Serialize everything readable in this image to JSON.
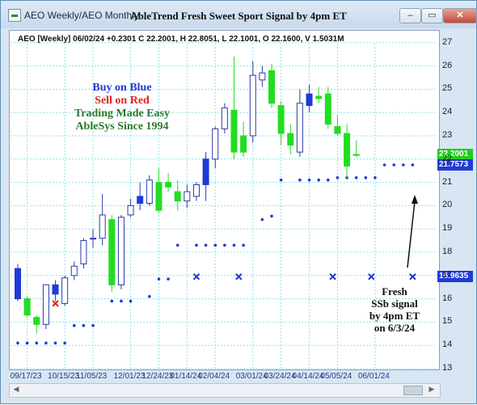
{
  "window": {
    "title": "AEO Weekly/AEO Monthly",
    "chart_title": "AbleTrend Fresh Sweet Sport Signal by 4pm ET",
    "minimize_label": "–",
    "restore_label": "▭",
    "close_label": "✕"
  },
  "info_line": "AEO [Weekly] 06/02/24 +0.2301 C 22.2001, H 22.8051, L 22.1001, O 22.1600, V 1.5031M",
  "annotations": {
    "buy": "Buy on Blue",
    "sell": "Sell on Red",
    "easy": "Trading Made Easy",
    "ablesys": "AbleSys Since 1994",
    "fresh": [
      "Fresh",
      "SSb signal",
      "by 4pm ET",
      "on 6/3/24"
    ]
  },
  "price_tags": [
    {
      "value": "22.2001",
      "bg": "#22cc22",
      "fg": "#ffffff"
    },
    {
      "value": "21.7573",
      "bg": "#1f3ad6",
      "fg": "#ffffff"
    },
    {
      "value": "16.9635",
      "bg": "#1f3ad6",
      "fg": "#ffffff"
    }
  ],
  "colors": {
    "buy": "#1f3ad6",
    "sell": "#dd2222",
    "green": "#22dd22",
    "dark_green": "#2a7a2a",
    "grid": "#8fe3e8",
    "dot": "#1f3ad6"
  },
  "chart_data": {
    "type": "candlestick",
    "ylim": [
      13,
      27.5
    ],
    "y_ticks": [
      13,
      14,
      15,
      16,
      17,
      18,
      19,
      20,
      21,
      22,
      23,
      24,
      25,
      26,
      27
    ],
    "x_tick_labels": [
      {
        "label": "09/17/23",
        "index": 1
      },
      {
        "label": "10/15/23",
        "index": 5
      },
      {
        "label": "11/05/23",
        "index": 8
      },
      {
        "label": "12/01/23",
        "index": 12
      },
      {
        "label": "12/24/23",
        "index": 15
      },
      {
        "label": "01/14/24",
        "index": 18
      },
      {
        "label": "02/04/24",
        "index": 21
      },
      {
        "label": "03/01/24",
        "index": 25
      },
      {
        "label": "03/24/24",
        "index": 28
      },
      {
        "label": "04/14/24",
        "index": 31
      },
      {
        "label": "05/05/24",
        "index": 34
      },
      {
        "label": "06/01/24",
        "index": 38
      }
    ],
    "candles": [
      {
        "o": 17.3,
        "h": 17.5,
        "l": 15.9,
        "c": 16.0,
        "color": "blue"
      },
      {
        "o": 16.0,
        "h": 16.1,
        "l": 15.2,
        "c": 15.3,
        "color": "green"
      },
      {
        "o": 15.2,
        "h": 15.3,
        "l": 14.5,
        "c": 14.9,
        "color": "green"
      },
      {
        "o": 14.9,
        "h": 16.6,
        "l": 14.7,
        "c": 16.6,
        "color": "hollow"
      },
      {
        "o": 16.6,
        "h": 16.8,
        "l": 15.9,
        "c": 16.2,
        "color": "blue"
      },
      {
        "o": 15.8,
        "h": 17.0,
        "l": 15.7,
        "c": 16.9,
        "color": "hollow"
      },
      {
        "o": 17.0,
        "h": 17.6,
        "l": 16.8,
        "c": 17.4,
        "color": "hollow"
      },
      {
        "o": 17.5,
        "h": 18.6,
        "l": 17.3,
        "c": 18.5,
        "color": "hollow"
      },
      {
        "o": 18.6,
        "h": 19.0,
        "l": 18.2,
        "c": 18.6,
        "color": "hollow"
      },
      {
        "o": 18.6,
        "h": 20.5,
        "l": 18.3,
        "c": 19.6,
        "color": "hollow"
      },
      {
        "o": 19.4,
        "h": 19.6,
        "l": 16.3,
        "c": 16.6,
        "color": "green"
      },
      {
        "o": 16.6,
        "h": 19.6,
        "l": 16.4,
        "c": 19.5,
        "color": "hollow"
      },
      {
        "o": 19.6,
        "h": 20.3,
        "l": 19.5,
        "c": 20.0,
        "color": "hollow"
      },
      {
        "o": 20.1,
        "h": 21.0,
        "l": 19.8,
        "c": 20.4,
        "color": "blue"
      },
      {
        "o": 20.1,
        "h": 21.3,
        "l": 20.0,
        "c": 21.1,
        "color": "hollow"
      },
      {
        "o": 21.0,
        "h": 21.6,
        "l": 19.7,
        "c": 19.8,
        "color": "green"
      },
      {
        "o": 21.0,
        "h": 21.4,
        "l": 20.6,
        "c": 20.8,
        "color": "green"
      },
      {
        "o": 20.6,
        "h": 21.1,
        "l": 19.8,
        "c": 20.2,
        "color": "green"
      },
      {
        "o": 20.2,
        "h": 20.9,
        "l": 19.9,
        "c": 20.6,
        "color": "hollow"
      },
      {
        "o": 20.4,
        "h": 21.0,
        "l": 20.2,
        "c": 20.9,
        "color": "hollow"
      },
      {
        "o": 20.9,
        "h": 22.3,
        "l": 20.2,
        "c": 22.0,
        "color": "blue"
      },
      {
        "o": 22.0,
        "h": 23.4,
        "l": 21.6,
        "c": 23.3,
        "color": "hollow"
      },
      {
        "o": 23.3,
        "h": 24.4,
        "l": 23.1,
        "c": 24.2,
        "color": "hollow"
      },
      {
        "o": 24.1,
        "h": 26.4,
        "l": 22.0,
        "c": 22.3,
        "color": "green"
      },
      {
        "o": 22.3,
        "h": 23.6,
        "l": 22.1,
        "c": 23.0,
        "color": "green"
      },
      {
        "o": 23.0,
        "h": 26.2,
        "l": 22.7,
        "c": 25.6,
        "color": "hollow"
      },
      {
        "o": 25.4,
        "h": 26.0,
        "l": 25.1,
        "c": 25.7,
        "color": "hollow"
      },
      {
        "o": 25.8,
        "h": 26.1,
        "l": 24.2,
        "c": 24.4,
        "color": "green"
      },
      {
        "o": 24.3,
        "h": 24.5,
        "l": 22.6,
        "c": 23.1,
        "color": "green"
      },
      {
        "o": 23.1,
        "h": 23.5,
        "l": 22.2,
        "c": 22.6,
        "color": "green"
      },
      {
        "o": 22.3,
        "h": 25.0,
        "l": 22.1,
        "c": 24.4,
        "color": "hollow"
      },
      {
        "o": 24.3,
        "h": 25.2,
        "l": 24.0,
        "c": 24.8,
        "color": "blue"
      },
      {
        "o": 24.7,
        "h": 25.1,
        "l": 24.4,
        "c": 24.6,
        "color": "green"
      },
      {
        "o": 24.8,
        "h": 25.1,
        "l": 23.3,
        "c": 23.5,
        "color": "green"
      },
      {
        "o": 23.4,
        "h": 23.9,
        "l": 23.0,
        "c": 23.1,
        "color": "green"
      },
      {
        "o": 23.1,
        "h": 23.5,
        "l": 21.2,
        "c": 21.7,
        "color": "green"
      },
      {
        "o": 22.16,
        "h": 22.81,
        "l": 22.1,
        "c": 22.2,
        "color": "green"
      }
    ],
    "support_dots": [
      {
        "y": 14.1,
        "i0": 0,
        "i1": 5
      },
      {
        "y": 14.85,
        "i0": 6,
        "i1": 8
      },
      {
        "y": 15.9,
        "i0": 10,
        "i1": 12
      },
      {
        "y": 16.1,
        "i0": 14,
        "i1": 14
      },
      {
        "y": 16.85,
        "i0": 15,
        "i1": 16
      },
      {
        "y": 18.3,
        "i0": 17,
        "i1": 17
      },
      {
        "y": 18.3,
        "i0": 19,
        "i1": 24
      },
      {
        "y": 19.4,
        "i0": 26,
        "i1": 26
      },
      {
        "y": 19.55,
        "i0": 27,
        "i1": 27
      },
      {
        "y": 21.1,
        "i0": 28,
        "i1": 28
      },
      {
        "y": 21.1,
        "i0": 30,
        "i1": 33
      },
      {
        "y": 21.2,
        "i0": 34,
        "i1": 34
      },
      {
        "y": 21.2,
        "i0": 35,
        "i1": 38
      },
      {
        "y": 21.75,
        "i0": 39,
        "i1": 41
      },
      {
        "y": 21.75,
        "i0": 42,
        "i1": 42
      }
    ],
    "x_markers": [
      {
        "i": 19,
        "y": 16.95,
        "color": "blue"
      },
      {
        "i": 23.5,
        "y": 16.95,
        "color": "blue"
      },
      {
        "i": 33.5,
        "y": 16.95,
        "color": "blue"
      },
      {
        "i": 37.6,
        "y": 16.95,
        "color": "blue"
      },
      {
        "i": 42,
        "y": 16.95,
        "color": "blue"
      },
      {
        "i": 4,
        "y": 15.8,
        "color": "red"
      }
    ]
  }
}
